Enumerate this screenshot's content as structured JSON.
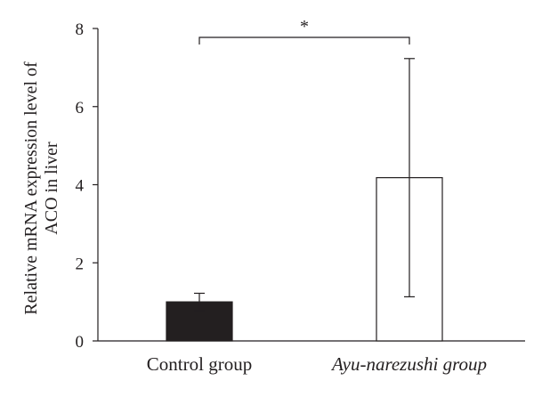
{
  "chart_data": {
    "type": "bar",
    "categories": [
      "Control group",
      "Ayu-narezushi group"
    ],
    "category_styles": [
      "normal",
      "italic"
    ],
    "values": [
      1.0,
      4.18
    ],
    "error_bars": [
      0.22,
      3.05
    ],
    "bar_colors": [
      "#231f20",
      "#ffffff"
    ],
    "bar_stroke": "#231f20",
    "ylabel_lines": [
      "Relative mRNA expression level of",
      "ACO in liver"
    ],
    "xlabel": "",
    "ylim": [
      0,
      8
    ],
    "yticks": [
      0,
      2,
      4,
      6,
      8
    ],
    "ytick_labels": [
      "0",
      "2",
      "4",
      "6",
      "8"
    ],
    "significance": {
      "from": 0,
      "to": 1,
      "label": "*"
    },
    "grid": false
  }
}
